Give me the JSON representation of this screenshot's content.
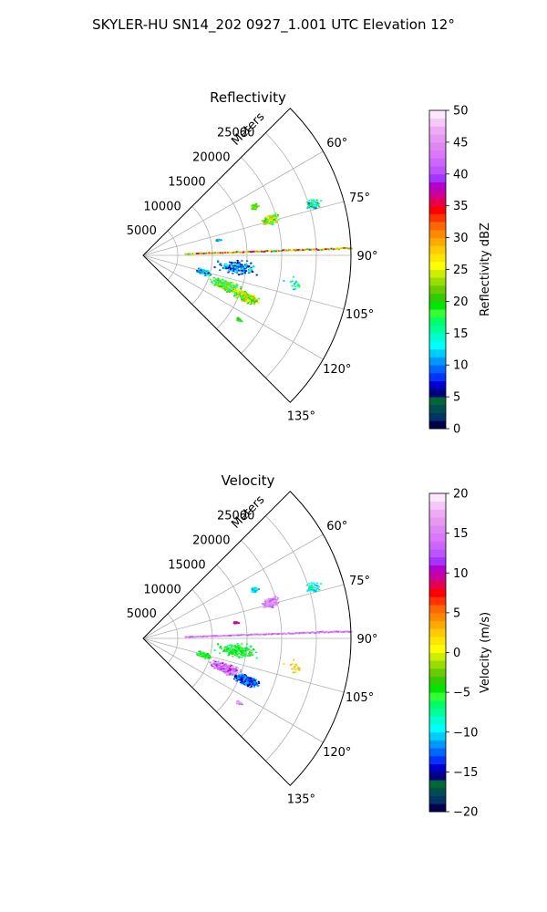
{
  "figure": {
    "suptitle": "SKYLER-HU  SN14_202  0927_1.001 UTC Elevation 12°"
  },
  "chart_data": [
    {
      "type": "polar-sector",
      "title": "Reflectivity",
      "radial_label": "Meters",
      "radial_ticks": [
        "5000",
        "10000",
        "15000",
        "20000",
        "25000"
      ],
      "radial_tick_values": [
        5000,
        10000,
        15000,
        20000,
        25000
      ],
      "r_max": 30000,
      "theta_range_deg": [
        45,
        135
      ],
      "theta_ticks": [
        "60°",
        "75°",
        "90°",
        "105°",
        "120°",
        "135°"
      ],
      "theta_tick_values": [
        60,
        75,
        90,
        105,
        120,
        135
      ],
      "colorbar": {
        "label": "Reflectivity dBZ",
        "range": [
          0,
          50
        ],
        "ticks": [
          "0",
          "5",
          "10",
          "15",
          "20",
          "25",
          "30",
          "35",
          "40",
          "45",
          "50"
        ],
        "colors": [
          "#00004c",
          "#003366",
          "#004d4d",
          "#006633",
          "#00007f",
          "#0000cc",
          "#0033ff",
          "#0066ff",
          "#0099ff",
          "#00ccff",
          "#00ffff",
          "#00ffcc",
          "#00ff99",
          "#00ff66",
          "#33ff33",
          "#00e600",
          "#33cc00",
          "#66cc00",
          "#99dd00",
          "#ccee00",
          "#ffff00",
          "#ffe600",
          "#ffcc00",
          "#ffaa00",
          "#ff8800",
          "#ff6600",
          "#ff3300",
          "#ff0000",
          "#e6004c",
          "#cc0099",
          "#b300cc",
          "#a633ff",
          "#bb55ff",
          "#cc66ff",
          "#dd77ff",
          "#dd88ee",
          "#e699ee",
          "#eeaaf5",
          "#f5c8fa",
          "#fde8ff"
        ]
      },
      "echo_regions": [
        {
          "theta": 66,
          "r": 17500,
          "spread_deg": 1.5,
          "spread_r": 600,
          "n": 50,
          "vmin": 18,
          "vmax": 24
        },
        {
          "theta": 74,
          "r": 19000,
          "spread_deg": 2.5,
          "spread_r": 1400,
          "n": 220,
          "vmin": 14,
          "vmax": 30
        },
        {
          "theta": 73,
          "r": 25500,
          "spread_deg": 2.0,
          "spread_r": 1500,
          "n": 60,
          "vmin": 8,
          "vmax": 22
        },
        {
          "theta": 78,
          "r": 11000,
          "spread_deg": 1.0,
          "spread_r": 500,
          "n": 15,
          "vmin": 8,
          "vmax": 14
        },
        {
          "theta": 97,
          "r": 13500,
          "spread_deg": 5,
          "spread_r": 3500,
          "n": 200,
          "vmin": 5,
          "vmax": 16
        },
        {
          "theta": 110,
          "r": 12500,
          "spread_deg": 4,
          "spread_r": 2600,
          "n": 420,
          "vmin": 12,
          "vmax": 28
        },
        {
          "theta": 112,
          "r": 16000,
          "spread_deg": 3,
          "spread_r": 2300,
          "n": 280,
          "vmin": 16,
          "vmax": 30
        },
        {
          "theta": 105,
          "r": 9000,
          "spread_deg": 3,
          "spread_r": 1500,
          "n": 90,
          "vmin": 6,
          "vmax": 20
        },
        {
          "theta": 124,
          "r": 16500,
          "spread_deg": 1.2,
          "spread_r": 600,
          "n": 40,
          "vmin": 16,
          "vmax": 22
        },
        {
          "theta": 100,
          "r": 22000,
          "spread_deg": 4,
          "spread_r": 2000,
          "n": 20,
          "vmin": 10,
          "vmax": 18
        }
      ],
      "line_echo": {
        "theta": 88,
        "r_start": 6000,
        "r_end": 30000,
        "vmin": 18,
        "vmax": 38
      }
    },
    {
      "type": "polar-sector",
      "title": "Velocity",
      "radial_label": "Meters",
      "radial_ticks": [
        "5000",
        "10000",
        "15000",
        "20000",
        "25000"
      ],
      "radial_tick_values": [
        5000,
        10000,
        15000,
        20000,
        25000
      ],
      "r_max": 30000,
      "theta_range_deg": [
        45,
        135
      ],
      "theta_ticks": [
        "60°",
        "75°",
        "90°",
        "105°",
        "120°",
        "135°"
      ],
      "theta_tick_values": [
        60,
        75,
        90,
        105,
        120,
        135
      ],
      "colorbar": {
        "label": "Velocity (m/s)",
        "range": [
          -20,
          20
        ],
        "ticks": [
          "−20",
          "−15",
          "−10",
          "−5",
          "0",
          "5",
          "10",
          "15",
          "20"
        ],
        "colors": [
          "#00004c",
          "#003366",
          "#004d4d",
          "#006633",
          "#00007f",
          "#0000cc",
          "#0033ff",
          "#0066ff",
          "#0099ff",
          "#00ccff",
          "#00ffff",
          "#00ffcc",
          "#00ff99",
          "#00ff66",
          "#33ff33",
          "#00e600",
          "#33cc00",
          "#66cc00",
          "#99dd00",
          "#ccee00",
          "#ffff00",
          "#ffe600",
          "#ffcc00",
          "#ffaa00",
          "#ff8800",
          "#ff6600",
          "#ff3300",
          "#ff0000",
          "#e6004c",
          "#cc0099",
          "#b300cc",
          "#a633ff",
          "#bb55ff",
          "#cc66ff",
          "#dd77ff",
          "#dd88ee",
          "#e699ee",
          "#eeaaf5",
          "#f5c8fa",
          "#fde8ff"
        ]
      },
      "echo_regions": [
        {
          "theta": 66,
          "r": 17500,
          "spread_deg": 1.5,
          "spread_r": 600,
          "n": 45,
          "vmin": -12,
          "vmax": -8
        },
        {
          "theta": 74,
          "r": 19000,
          "spread_deg": 2.5,
          "spread_r": 1400,
          "n": 200,
          "vmin": 12,
          "vmax": 18
        },
        {
          "theta": 73,
          "r": 25500,
          "spread_deg": 2.0,
          "spread_r": 1500,
          "n": 50,
          "vmin": -12,
          "vmax": -6
        },
        {
          "theta": 80,
          "r": 13500,
          "spread_deg": 1.0,
          "spread_r": 500,
          "n": 15,
          "vmin": 8,
          "vmax": 12
        },
        {
          "theta": 97,
          "r": 13500,
          "spread_deg": 5,
          "spread_r": 3500,
          "n": 220,
          "vmin": -8,
          "vmax": -2
        },
        {
          "theta": 110,
          "r": 12500,
          "spread_deg": 4,
          "spread_r": 2600,
          "n": 380,
          "vmin": 10,
          "vmax": 18
        },
        {
          "theta": 112,
          "r": 16000,
          "spread_deg": 3,
          "spread_r": 2300,
          "n": 320,
          "vmin": -16,
          "vmax": -10
        },
        {
          "theta": 105,
          "r": 9000,
          "spread_deg": 3,
          "spread_r": 1500,
          "n": 90,
          "vmin": -7,
          "vmax": -2
        },
        {
          "theta": 124,
          "r": 16500,
          "spread_deg": 1.2,
          "spread_r": 600,
          "n": 40,
          "vmin": 12,
          "vmax": 18
        },
        {
          "theta": 100,
          "r": 22000,
          "spread_deg": 4,
          "spread_r": 2000,
          "n": 20,
          "vmin": -2,
          "vmax": 4
        }
      ],
      "line_echo": {
        "theta": 88,
        "r_start": 6000,
        "r_end": 30000,
        "vmin": 12,
        "vmax": 17
      }
    }
  ]
}
